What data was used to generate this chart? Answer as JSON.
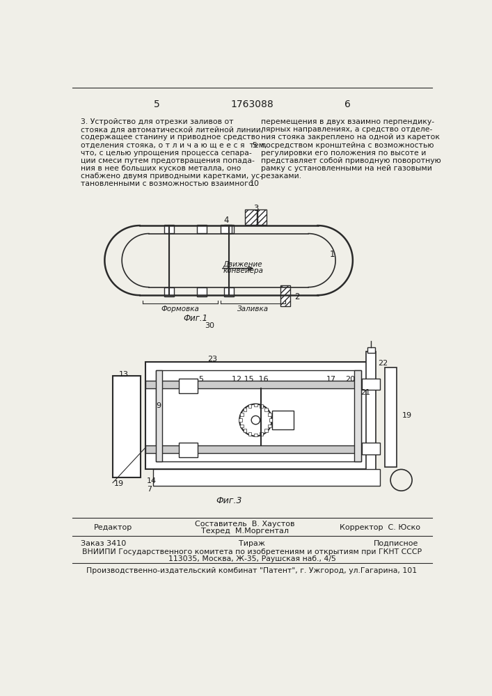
{
  "page_numbers": [
    "5",
    "1763088",
    "6"
  ],
  "left_lines": [
    "3. Устройство для отрезки заливов от",
    "стояка для автоматической литейной линии,",
    "содержащее станину и приводное средство",
    "отделения стояка, о т л и ч а ю щ е е с я  тем,",
    "что, с целью упрощения процесса сепара-",
    "ции смеси путем предотвращения попада-",
    "ния в нее больших кусков металла, оно",
    "снабжено двумя приводными каретками, ус-",
    "тановленными с возможностью взаимного"
  ],
  "right_lines": [
    "перемещения в двух взаимно перпендику-",
    "лярных направлениях, а средство отделе-",
    "ния стояка закреплено на одной из кареток",
    "посредством кронштейна с возможностью",
    "регулировки его положения по высоте и",
    "представляет собой приводную поворотную",
    "рамку с установленными на ней газовыми",
    "резаками."
  ],
  "fig1_label": "Фиг.1",
  "fig1_sublabel": "30",
  "fig3_label": "Фиг.3",
  "conveyor_line1": "Движение",
  "conveyor_line2": "конвейера",
  "formovka_text": "Формовка",
  "zalivka_text": "Заливка",
  "footer_editor": "Редактор",
  "footer_composer": "Составитель  В. Хаустов",
  "footer_techred": "Техред  М.Моргентал",
  "footer_corrector": "Корректор  С. Юско",
  "footer_order": "Заказ 3410",
  "footer_tirazh": "Тираж",
  "footer_podpisnoe": "Подписное",
  "footer_vniipи": "ВНИИПИ Государственного комитета по изобретениям и открытиям при ГКНТ СССР",
  "footer_address": "113035, Москва, Ж-35, Раушская наб., 4/5",
  "footer_publisher": "Производственно-издательский комбинат \"Патент\", г. Ужгород, ул.Гагарина, 101",
  "bg_color": "#f0efe8",
  "line_color": "#2a2a2a",
  "text_color": "#1a1a1a"
}
